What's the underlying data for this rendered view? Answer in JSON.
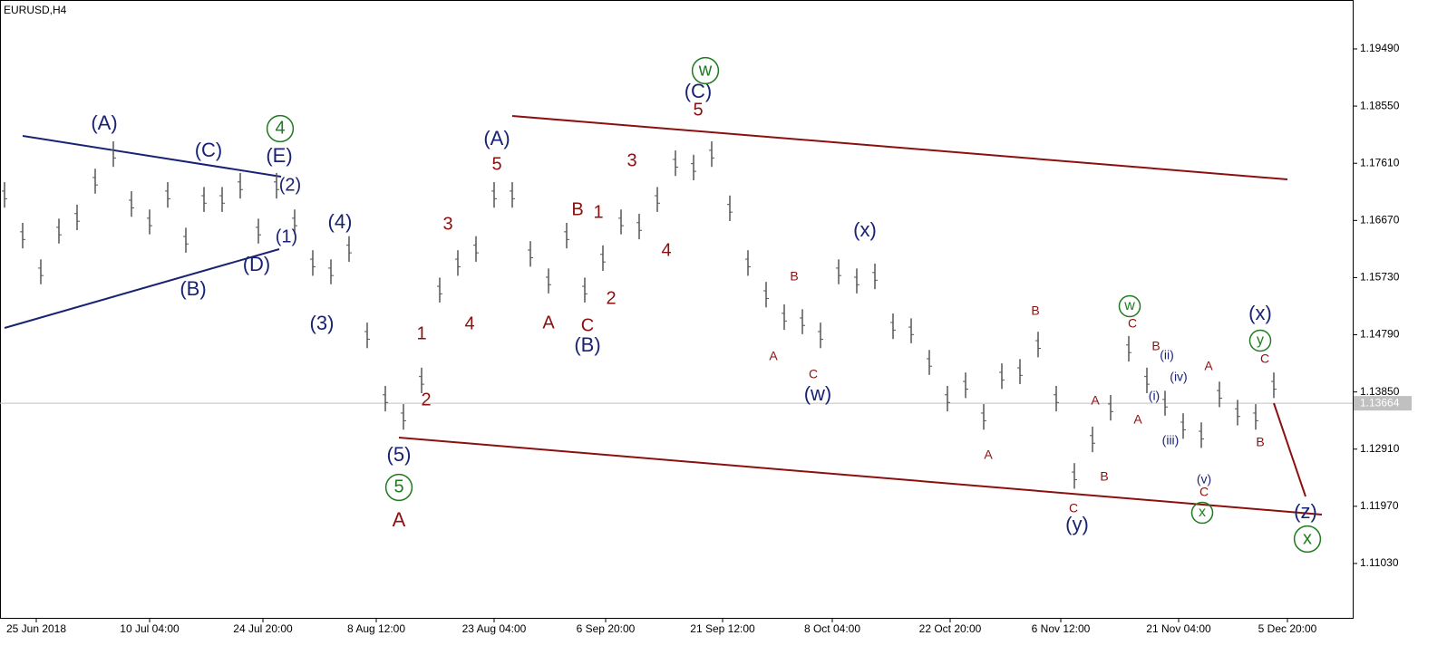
{
  "chart_data": {
    "type": "ohlc",
    "title": "EURUSD,H4",
    "color": "#555555",
    "high": [
      1.173,
      1.1663,
      1.1603,
      1.167,
      1.1693,
      1.1752,
      1.1797,
      1.1715,
      1.1685,
      1.173,
      1.1655,
      1.1722,
      1.1722,
      1.1745,
      1.167,
      1.1745,
      1.1685,
      1.1618,
      1.1603,
      1.1641,
      1.1499,
      1.1395,
      1.1365,
      1.1425,
      1.1573,
      1.1618,
      1.1641,
      1.173,
      1.173,
      1.1633,
      1.1588,
      1.1663,
      1.1573,
      1.1626,
      1.1685,
      1.1678,
      1.1722,
      1.1782,
      1.1775,
      1.1797,
      1.1708,
      1.1618,
      1.1566,
      1.1529,
      1.1521,
      1.1499,
      1.1603,
      1.1588,
      1.1596,
      1.1514,
      1.1506,
      1.1454,
      1.1395,
      1.1417,
      1.1365,
      1.1432,
      1.1439,
      1.1484,
      1.1395,
      1.1268,
      1.1328,
      1.138,
      1.1477,
      1.1425,
      1.1387,
      1.135,
      1.1335,
      1.1402,
      1.1372,
      1.1365,
      1.1417
    ],
    "low": [
      1.1688,
      1.1621,
      1.1562,
      1.1629,
      1.1651,
      1.1711,
      1.1755,
      1.1673,
      1.1644,
      1.1688,
      1.1614,
      1.1681,
      1.1681,
      1.1703,
      1.1629,
      1.1703,
      1.1644,
      1.1576,
      1.1562,
      1.1599,
      1.1457,
      1.1353,
      1.1323,
      1.1383,
      1.1532,
      1.1576,
      1.1599,
      1.1688,
      1.1688,
      1.1591,
      1.1547,
      1.1621,
      1.1532,
      1.1584,
      1.1644,
      1.1636,
      1.1681,
      1.174,
      1.1733,
      1.1755,
      1.1666,
      1.1576,
      1.1524,
      1.1487,
      1.148,
      1.1457,
      1.1562,
      1.1547,
      1.1554,
      1.1472,
      1.1465,
      1.1413,
      1.1353,
      1.1375,
      1.1323,
      1.139,
      1.1398,
      1.1442,
      1.1353,
      1.1226,
      1.1286,
      1.1338,
      1.1435,
      1.1383,
      1.1346,
      1.1308,
      1.1293,
      1.136,
      1.133,
      1.1323,
      1.1375
    ],
    "xlim": [
      -0.25,
      74.35
    ],
    "xticks": [
      {
        "value": 1.75,
        "label": "25 Jun 2018"
      },
      {
        "value": 8,
        "label": "10 Jul 04:00"
      },
      {
        "value": 14.25,
        "label": "24 Jul 20:00"
      },
      {
        "value": 20.5,
        "label": "8 Aug 12:00"
      },
      {
        "value": 27,
        "label": "23 Aug 04:00"
      },
      {
        "value": 33.15,
        "label": "6 Sep 20:00"
      },
      {
        "value": 39.6,
        "label": "21 Sep 12:00"
      },
      {
        "value": 45.65,
        "label": "8 Oct 04:00"
      },
      {
        "value": 52.15,
        "label": "22 Oct 20:00"
      },
      {
        "value": 58.25,
        "label": "6 Nov 12:00"
      },
      {
        "value": 64.75,
        "label": "21 Nov 04:00"
      },
      {
        "value": 70.75,
        "label": "5 Dec 20:00"
      }
    ],
    "ylim": [
      1.10136,
      1.20294
    ],
    "yticks": [
      {
        "value": 1.1949,
        "label": "1.19490"
      },
      {
        "value": 1.1855,
        "label": "1.18550"
      },
      {
        "value": 1.1761,
        "label": "1.17610"
      },
      {
        "value": 1.1667,
        "label": "1.16670"
      },
      {
        "value": 1.1573,
        "label": "1.15730"
      },
      {
        "value": 1.1479,
        "label": "1.14790"
      },
      {
        "value": 1.1385,
        "label": "1.13850"
      },
      {
        "value": 1.1291,
        "label": "1.12910"
      },
      {
        "value": 1.1197,
        "label": "1.11970"
      },
      {
        "value": 1.1103,
        "label": "1.11030"
      }
    ],
    "last_price": {
      "value": 1.13664,
      "label": "1.13664"
    },
    "wave_labels": [
      {
        "text": "(A)",
        "color": "#1a2373"
      },
      {
        "text": "(C)",
        "color": "#1a2373"
      },
      {
        "text": "(E)",
        "color": "#1a2373"
      },
      {
        "text": "(2)",
        "color": "#1a2373"
      },
      {
        "text": "(1)",
        "color": "#1a2373"
      },
      {
        "text": "(D)",
        "color": "#1a2373"
      },
      {
        "text": "(B)",
        "color": "#1a2373"
      },
      {
        "text": "(4)",
        "color": "#1a2373"
      },
      {
        "text": "(3)",
        "color": "#1a2373"
      },
      {
        "text": "(5)",
        "color": "#1a2373"
      },
      {
        "text": "(A)",
        "color": "#1a2373"
      },
      {
        "text": "(C)",
        "color": "#1a2373"
      },
      {
        "text": "(B)",
        "color": "#1a2373"
      },
      {
        "text": "(x)",
        "color": "#1a2373"
      },
      {
        "text": "(w)",
        "color": "#1a2373"
      },
      {
        "text": "(y)",
        "color": "#1a2373"
      },
      {
        "text": "(x)",
        "color": "#1a2373"
      },
      {
        "text": "(z)",
        "color": "#1a2373"
      },
      {
        "text": "4",
        "color": "#1e7b1e",
        "circled": true
      },
      {
        "text": "5",
        "color": "#1e7b1e",
        "circled": true
      },
      {
        "text": "w",
        "color": "#1e7b1e",
        "circled": true
      },
      {
        "text": "w",
        "color": "#1e7b1e",
        "circled": true
      },
      {
        "text": "y",
        "color": "#1e7b1e",
        "circled": true
      },
      {
        "text": "x",
        "color": "#1e7b1e",
        "circled": true
      },
      {
        "text": "x",
        "color": "#1e7b1e",
        "circled": true
      },
      {
        "text": "A",
        "color": "#8b1010"
      },
      {
        "text": "5",
        "color": "#8b1010"
      },
      {
        "text": "3",
        "color": "#8b1010"
      },
      {
        "text": "1",
        "color": "#8b1010"
      },
      {
        "text": "2",
        "color": "#8b1010"
      },
      {
        "text": "4",
        "color": "#8b1010"
      },
      {
        "text": "3",
        "color": "#8b1010"
      },
      {
        "text": "B",
        "color": "#8b1010"
      },
      {
        "text": "1",
        "color": "#8b1010"
      },
      {
        "text": "2",
        "color": "#8b1010"
      },
      {
        "text": "4",
        "color": "#8b1010"
      },
      {
        "text": "A",
        "color": "#8b1010"
      },
      {
        "text": "C",
        "color": "#8b1010"
      },
      {
        "text": "5",
        "color": "#8b1010"
      },
      {
        "text": "B",
        "color": "#8b1010"
      },
      {
        "text": "A",
        "color": "#8b1010"
      },
      {
        "text": "C",
        "color": "#8b1010"
      },
      {
        "text": "B",
        "color": "#8b1010"
      },
      {
        "text": "A",
        "color": "#8b1010"
      },
      {
        "text": "C",
        "color": "#8b1010"
      },
      {
        "text": "A",
        "color": "#8b1010"
      },
      {
        "text": "B",
        "color": "#8b1010"
      },
      {
        "text": "C",
        "color": "#8b1010"
      },
      {
        "text": "B",
        "color": "#8b1010"
      },
      {
        "text": "A",
        "color": "#8b1010"
      },
      {
        "text": "C",
        "color": "#8b1010"
      },
      {
        "text": "A",
        "color": "#8b1010"
      },
      {
        "text": "C",
        "color": "#8b1010"
      },
      {
        "text": "B",
        "color": "#8b1010"
      },
      {
        "text": "(ii)",
        "color": "#1a2373"
      },
      {
        "text": "(iv)",
        "color": "#1a2373"
      },
      {
        "text": "(i)",
        "color": "#1a2373"
      },
      {
        "text": "(iii)",
        "color": "#1a2373"
      },
      {
        "text": "(v)",
        "color": "#1a2373"
      }
    ]
  }
}
